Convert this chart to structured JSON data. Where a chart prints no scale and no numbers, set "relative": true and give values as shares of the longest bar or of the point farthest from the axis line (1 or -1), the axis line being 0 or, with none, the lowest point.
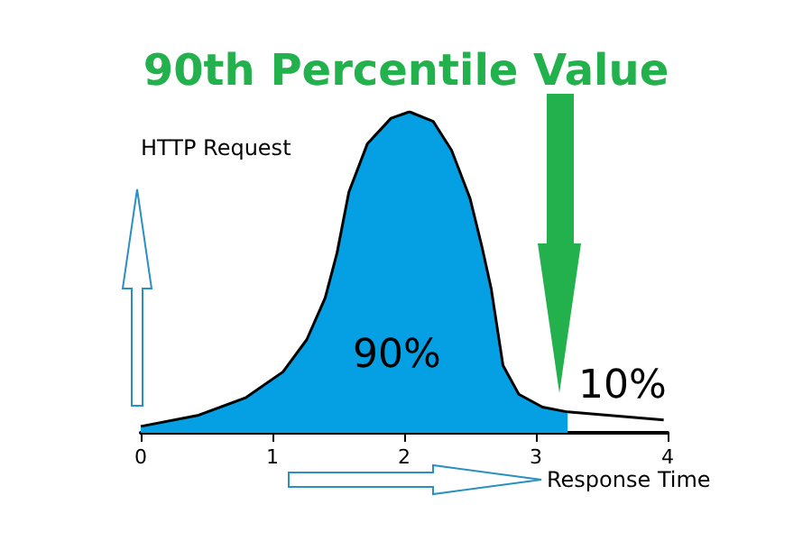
{
  "chart_data": {
    "type": "area",
    "title": "90th Percentile Value",
    "xlabel": "Response Time",
    "ylabel": "HTTP Request",
    "relative": true,
    "grid": false,
    "marker": "none",
    "xlim": [
      0,
      4
    ],
    "xticks": [
      0,
      1,
      2,
      3,
      4
    ],
    "series": [
      {
        "color": "#05a0e4",
        "x": [
          0,
          0.44,
          0.8,
          1.08,
          1.26,
          1.4,
          1.49,
          1.58,
          1.72,
          1.9,
          2.04,
          2.22,
          2.36,
          2.5,
          2.59,
          2.66,
          2.75,
          2.87,
          3.05,
          3.24
        ],
        "values": [
          0.02,
          0.055,
          0.11,
          0.19,
          0.29,
          0.42,
          0.56,
          0.75,
          0.9,
          0.98,
          1,
          0.97,
          0.88,
          0.73,
          0.58,
          0.45,
          0.21,
          0.12,
          0.08,
          0.065
        ]
      },
      {
        "type": "line",
        "color": "#000000",
        "x": [
          3.24,
          3.97
        ],
        "values": [
          0.065,
          0.04
        ]
      }
    ],
    "annotations": [
      "90%",
      "10%"
    ]
  }
}
